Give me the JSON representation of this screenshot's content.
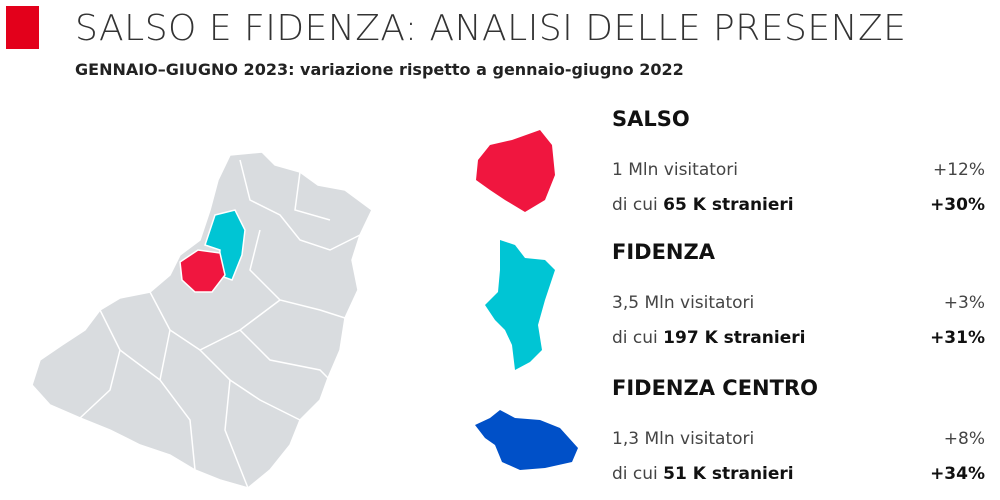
{
  "header": {
    "title": "SALSO E FIDENZA: ANALISI DELLE PRESENZE",
    "subtitle": "GENNAIO–GIUGNO 2023: variazione rispetto a gennaio-giugno 2022"
  },
  "sections": [
    {
      "name": "SALSO",
      "visitors": "1 Mln visitatori",
      "visitors_change": "+12%",
      "foreign_prefix": "di cui",
      "foreign": "65 K stranieri",
      "foreign_change": "+30%"
    },
    {
      "name": "FIDENZA",
      "visitors": "3,5 Mln visitatori",
      "visitors_change": "+3%",
      "foreign_prefix": "di cui",
      "foreign": "197 K stranieri",
      "foreign_change": "+31%"
    },
    {
      "name": "FIDENZA CENTRO",
      "visitors": "1,3 Mln visitatori",
      "visitors_change": "+8%",
      "foreign_prefix": "di cui",
      "foreign": "51 K stranieri",
      "foreign_change": "+34%"
    }
  ]
}
